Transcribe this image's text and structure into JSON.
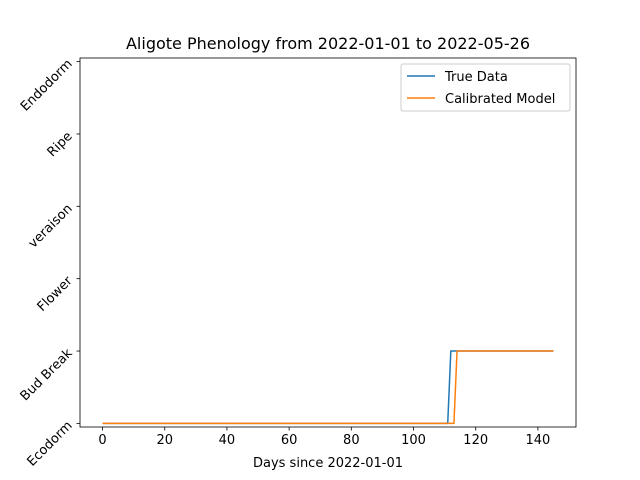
{
  "chart_data": {
    "type": "line",
    "title": "Aligote Phenology from 2022-01-01 to 2022-05-26",
    "xlabel": "Days since 2022-01-01",
    "ylabel": "",
    "xlim": [
      -7.25,
      152.25
    ],
    "ylim": [
      -0.05,
      5.05
    ],
    "x_ticks": [
      0,
      20,
      40,
      60,
      80,
      100,
      120,
      140
    ],
    "y_ticks": [
      {
        "value": 0,
        "label": "Ecodorm"
      },
      {
        "value": 1,
        "label": "Bud Break"
      },
      {
        "value": 2,
        "label": "Flower"
      },
      {
        "value": 3,
        "label": "veraison"
      },
      {
        "value": 4,
        "label": "Ripe"
      },
      {
        "value": 5,
        "label": "Endodorm"
      }
    ],
    "grid": false,
    "legend_position": "upper right",
    "series": [
      {
        "name": "True Data",
        "color": "#1f77b4",
        "points": [
          [
            0,
            0
          ],
          [
            111,
            0
          ],
          [
            112,
            1
          ],
          [
            145,
            1
          ]
        ]
      },
      {
        "name": "Calibrated Model",
        "color": "#ff7f0e",
        "points": [
          [
            0,
            0
          ],
          [
            113,
            0
          ],
          [
            114,
            1
          ],
          [
            145,
            1
          ]
        ]
      }
    ]
  }
}
